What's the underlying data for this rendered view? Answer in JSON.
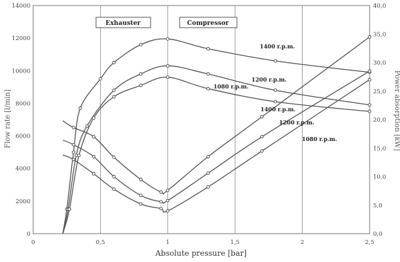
{
  "chart_data": {
    "type": "line",
    "xlabel": "Absolute pressure [bar]",
    "ylabel_left": "Flow rate [l/min]",
    "ylabel_right": "Power absorption [kW]",
    "xlim": [
      0,
      2.5
    ],
    "ylim_left": [
      0,
      14000
    ],
    "ylim_right": [
      0,
      40
    ],
    "x_ticks": [
      "0",
      "0,5",
      "1",
      "1,5",
      "2",
      "2,5"
    ],
    "y_left_ticks": [
      "0",
      "2000",
      "4000",
      "6000",
      "8000",
      "10000",
      "12000",
      "14000"
    ],
    "y_right_ticks": [
      "0,0",
      "5,0",
      "10,0",
      "15,0",
      "20,0",
      "25,0",
      "30,0",
      "35,0",
      "40,0"
    ],
    "grid": "vertical at x ticks",
    "region_labels": [
      "Exhauster",
      "Compressor"
    ],
    "series": [
      {
        "name": "1400 r.p.m.",
        "axis": "left",
        "points": [
          [
            0.22,
            0
          ],
          [
            0.25,
            1500
          ],
          [
            0.3,
            5000
          ],
          [
            0.35,
            7700
          ],
          [
            0.5,
            9500
          ],
          [
            0.6,
            10500
          ],
          [
            0.8,
            11600
          ],
          [
            1.0,
            11950
          ],
          [
            1.3,
            11350
          ],
          [
            1.8,
            10600
          ],
          [
            2.5,
            9900
          ]
        ]
      },
      {
        "name": "1200 r.p.m.",
        "axis": "left",
        "points": [
          [
            0.22,
            0
          ],
          [
            0.26,
            1500
          ],
          [
            0.32,
            4800
          ],
          [
            0.4,
            6600
          ],
          [
            0.6,
            8800
          ],
          [
            0.8,
            9800
          ],
          [
            1.0,
            10300
          ],
          [
            1.3,
            9800
          ],
          [
            1.8,
            8800
          ],
          [
            2.5,
            7900
          ]
        ]
      },
      {
        "name": "1080 r.p.m.",
        "axis": "left",
        "points": [
          [
            0.22,
            0
          ],
          [
            0.27,
            1500
          ],
          [
            0.34,
            4800
          ],
          [
            0.45,
            7100
          ],
          [
            0.6,
            8400
          ],
          [
            0.8,
            9100
          ],
          [
            1.0,
            9600
          ],
          [
            1.3,
            8900
          ],
          [
            1.8,
            8100
          ],
          [
            2.5,
            7500
          ]
        ]
      },
      {
        "name": "1400 r.p.m.",
        "axis": "right",
        "points": [
          [
            0.22,
            19.8
          ],
          [
            0.3,
            18.6
          ],
          [
            0.45,
            17.0
          ],
          [
            0.6,
            13.4
          ],
          [
            0.8,
            9.5
          ],
          [
            0.95,
            7.3
          ],
          [
            1.0,
            7.6
          ],
          [
            1.3,
            13.5
          ],
          [
            1.7,
            20.5
          ],
          [
            2.5,
            34.5
          ]
        ]
      },
      {
        "name": "1200 r.p.m.",
        "axis": "right",
        "points": [
          [
            0.22,
            16.4
          ],
          [
            0.3,
            15.6
          ],
          [
            0.45,
            13.5
          ],
          [
            0.6,
            10.0
          ],
          [
            0.8,
            6.7
          ],
          [
            0.95,
            5.6
          ],
          [
            1.0,
            5.8
          ],
          [
            1.3,
            10.6
          ],
          [
            1.7,
            17.0
          ],
          [
            2.5,
            28.5
          ]
        ]
      },
      {
        "name": "1080 r.p.m.",
        "axis": "right",
        "points": [
          [
            0.22,
            13.8
          ],
          [
            0.3,
            13.0
          ],
          [
            0.45,
            10.5
          ],
          [
            0.6,
            7.8
          ],
          [
            0.8,
            5.2
          ],
          [
            0.95,
            4.4
          ],
          [
            1.0,
            4.0
          ],
          [
            1.3,
            8.2
          ],
          [
            1.7,
            14.5
          ],
          [
            2.5,
            27.0
          ]
        ]
      }
    ]
  }
}
